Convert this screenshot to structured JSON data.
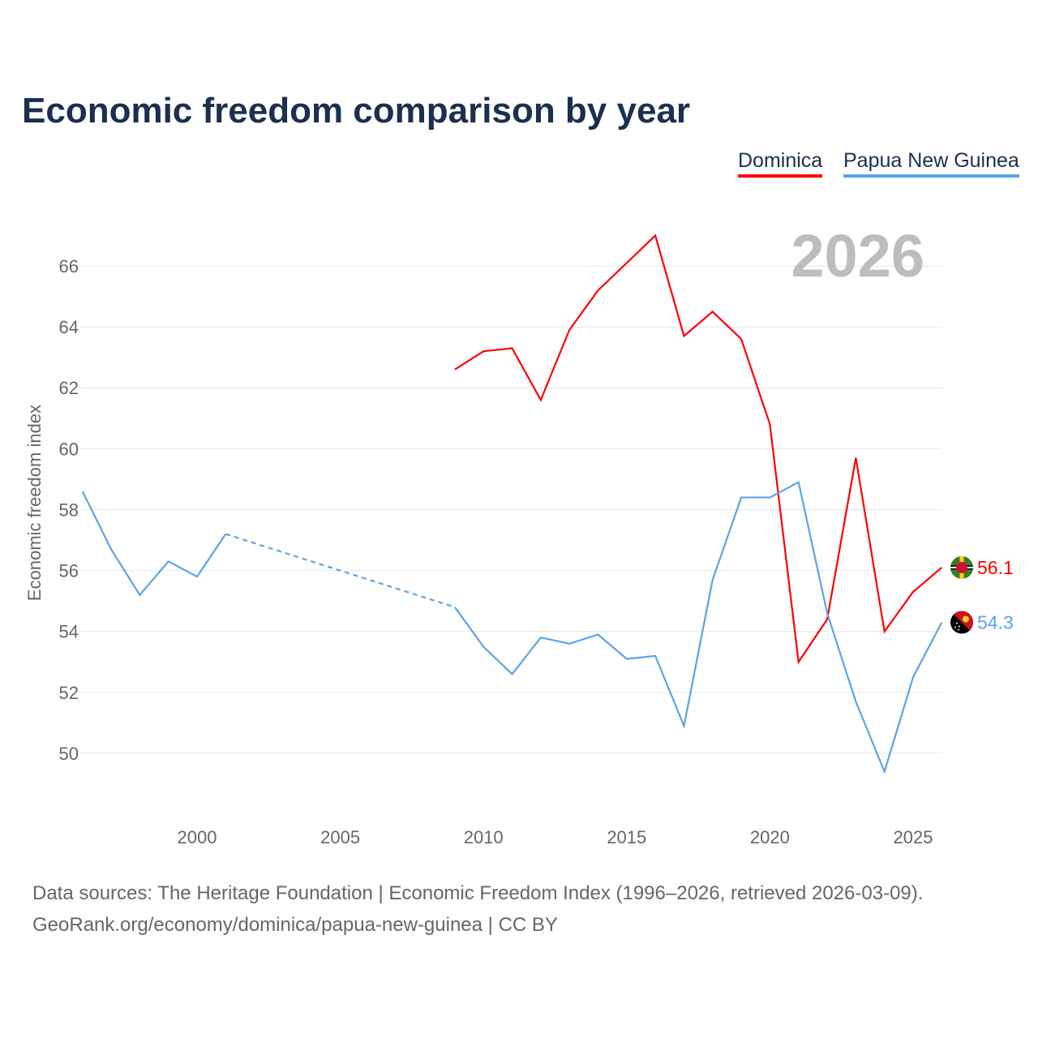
{
  "title": "Economic freedom comparison by year",
  "legend": [
    "Dominica",
    "Papua New Guinea"
  ],
  "footer": {
    "line1": "Data sources: The Heritage Foundation | Economic Freedom Index (1996–2026, retrieved 2026-03-09).",
    "line2": "GeoRank.org/economy/dominica/papua-new-guinea | CC BY"
  },
  "chart_data": {
    "type": "line",
    "title": "Economic freedom comparison by year",
    "year_label": "2026",
    "ylabel": "Economic freedom index",
    "xlabel": "",
    "xlim": [
      1996,
      2026
    ],
    "ylim": [
      48,
      68
    ],
    "xticks": [
      2000,
      2005,
      2010,
      2015,
      2020,
      2025
    ],
    "yticks": [
      50,
      52,
      54,
      56,
      58,
      60,
      62,
      64,
      66
    ],
    "grid": true,
    "legend_position": "top-right",
    "series": [
      {
        "name": "Dominica",
        "color": "#ff0000",
        "end_label": "56.1",
        "flag": "dominica-flag",
        "x": [
          2009,
          2010,
          2011,
          2012,
          2013,
          2014,
          2015,
          2016,
          2017,
          2018,
          2019,
          2020,
          2021,
          2022,
          2023,
          2024,
          2025,
          2026
        ],
        "y": [
          62.6,
          63.2,
          63.3,
          61.6,
          63.9,
          65.2,
          66.1,
          67.0,
          63.7,
          64.5,
          63.6,
          60.8,
          53.0,
          54.4,
          59.7,
          54.0,
          55.3,
          56.1
        ]
      },
      {
        "name": "Papua New Guinea",
        "color": "#5ba4e8",
        "end_label": "54.3",
        "flag": "papua-new-guinea-flag",
        "x": [
          1996,
          1997,
          1998,
          1999,
          2000,
          2001,
          2009,
          2010,
          2011,
          2012,
          2013,
          2014,
          2015,
          2016,
          2017,
          2018,
          2019,
          2020,
          2021,
          2022,
          2023,
          2024,
          2025,
          2026
        ],
        "y": [
          58.6,
          56.7,
          55.2,
          56.3,
          55.8,
          57.2,
          54.8,
          53.5,
          52.6,
          53.8,
          53.6,
          53.9,
          53.1,
          53.2,
          50.9,
          55.7,
          58.4,
          58.4,
          58.9,
          54.6,
          51.7,
          49.4,
          52.5,
          54.3
        ],
        "dashed_gap": [
          2001,
          2009
        ]
      }
    ]
  }
}
